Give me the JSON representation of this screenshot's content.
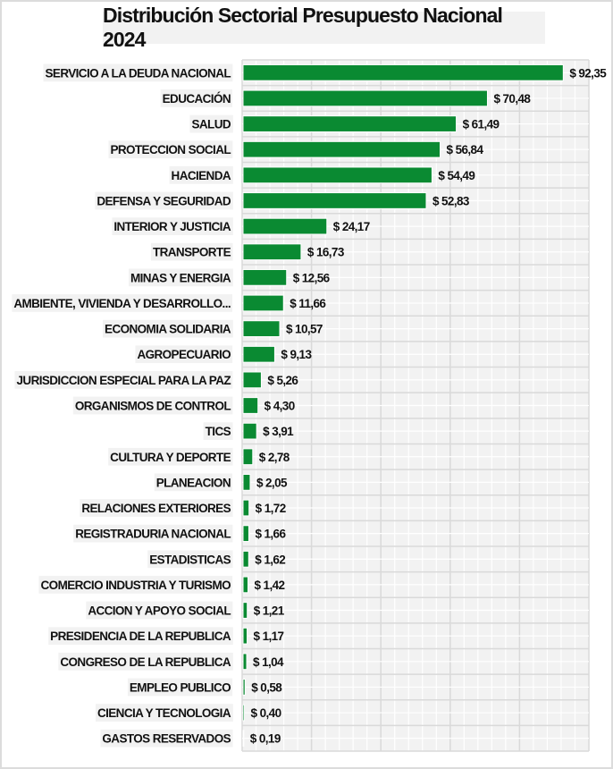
{
  "chart_data": {
    "type": "bar",
    "orientation": "horizontal",
    "title": "Distribución Sectorial Presupuesto Nacional 2024",
    "xlabel": "",
    "ylabel": "",
    "xlim": [
      0,
      100
    ],
    "grid": true,
    "legend": "none",
    "bar_color": "#0a8a32",
    "value_prefix": "$ ",
    "categories": [
      "SERVICIO A LA DEUDA NACIONAL",
      "EDUCACIÓN",
      "SALUD",
      "PROTECCION SOCIAL",
      "HACIENDA",
      "DEFENSA Y SEGURIDAD",
      "INTERIOR Y JUSTICIA",
      "TRANSPORTE",
      "MINAS Y ENERGIA",
      "AMBIENTE, VIVIENDA Y DESARROLLO...",
      "ECONOMIA SOLIDARIA",
      "AGROPECUARIO",
      "JURISDICCION ESPECIAL PARA LA PAZ",
      "ORGANISMOS DE CONTROL",
      "TICS",
      "CULTURA Y DEPORTE",
      "PLANEACION",
      "RELACIONES EXTERIORES",
      "REGISTRADURIA NACIONAL",
      "ESTADISTICAS",
      "COMERCIO INDUSTRIA Y TURISMO",
      "ACCION Y APOYO SOCIAL",
      "PRESIDENCIA DE LA REPUBLICA",
      "CONGRESO DE LA REPUBLICA",
      "EMPLEO PUBLICO",
      "CIENCIA Y TECNOLOGIA",
      "GASTOS RESERVADOS"
    ],
    "values": [
      92.35,
      70.48,
      61.49,
      56.84,
      54.49,
      52.83,
      24.17,
      16.73,
      12.56,
      11.66,
      10.57,
      9.13,
      5.26,
      4.3,
      3.91,
      2.78,
      2.05,
      1.72,
      1.66,
      1.62,
      1.42,
      1.21,
      1.17,
      1.04,
      0.58,
      0.4,
      0.19
    ],
    "value_labels": [
      "$ 92,35",
      "$ 70,48",
      "$ 61,49",
      "$ 56,84",
      "$ 54,49",
      "$ 52,83",
      "$ 24,17",
      "$ 16,73",
      "$ 12,56",
      "$ 11,66",
      "$ 10,57",
      "$ 9,13",
      "$ 5,26",
      "$ 4,30",
      "$ 3,91",
      "$ 2,78",
      "$ 2,05",
      "$ 1,72",
      "$ 1,66",
      "$ 1,62",
      "$ 1,42",
      "$ 1,21",
      "$ 1,17",
      "$ 1,04",
      "$ 0,58",
      "$ 0,40",
      "$ 0,19"
    ]
  }
}
